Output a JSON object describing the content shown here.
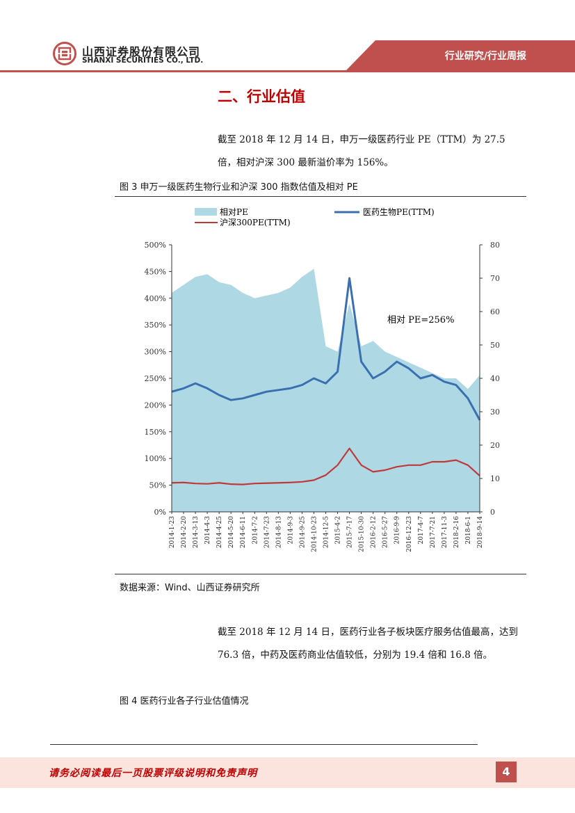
{
  "header": {
    "company_cn": "山西证券股份有限公司",
    "company_en": "SHANXI SECURITIES CO., LTD.",
    "report_tag": "行业研究/行业周报"
  },
  "section": {
    "title": "二、行业估值"
  },
  "para1": "截至 2018 年 12 月 14 日，申万一级医药行业 PE（TTM）为 27.5 倍，相对沪深 300 最新溢价率为 156%。",
  "fig3": {
    "title": "图 3  申万一级医药生物行业和沪深 300 指数估值及相对 PE"
  },
  "source": "数据来源：Wind、山西证券研究所",
  "para2": "截至 2018 年 12 月 14 日，医药行业各子板块医疗服务估值最高，达到 76.3 倍，中药及医药商业估值较低，分别为 19.4 倍和 16.8 倍。",
  "fig4": {
    "title": "图 4  医药行业各子行业估值情况"
  },
  "footer": {
    "disclaimer": "请务必阅读最后一页股票评级说明和免责声明",
    "page": "4"
  },
  "colors": {
    "brand_red": "#c0504d",
    "area": "#aed8e4",
    "pharma_line": "#3a6fb0",
    "hs300_line": "#c0393a"
  },
  "chart_data": {
    "type": "line",
    "legend": [
      "相对PE",
      "医药生物PE(TTM)",
      "沪深300PE(TTM)"
    ],
    "annotation": "相对 PE=256%",
    "y_left": {
      "ticks": [
        "0%",
        "50%",
        "100%",
        "150%",
        "200%",
        "250%",
        "300%",
        "350%",
        "400%",
        "450%",
        "500%"
      ],
      "range": [
        0,
        500
      ]
    },
    "y_right": {
      "ticks": [
        "0",
        "10",
        "20",
        "30",
        "40",
        "50",
        "60",
        "70",
        "80"
      ],
      "range": [
        0,
        80
      ]
    },
    "x_labels": [
      "2014-1-23",
      "2014-2-20",
      "2014-3-13",
      "2014-4-3",
      "2014-4-25",
      "2014-5-20",
      "2014-6-11",
      "2014-7-2",
      "2014-7-23",
      "2014-8-13",
      "2014-9-3",
      "2014-9-25",
      "2014-10-23",
      "2014-12-5",
      "2015-4-2",
      "2015-7-17",
      "2015-10-30",
      "2016-2-12",
      "2016-5-27",
      "2016-9-9",
      "2016-12-23",
      "2017-4-7",
      "2017-7-21",
      "2017-11-3",
      "2018-2-16",
      "2018-6-1",
      "2018-9-14"
    ],
    "series": [
      {
        "name": "相对PE",
        "axis": "left",
        "values": [
          410,
          425,
          440,
          445,
          430,
          425,
          410,
          400,
          405,
          410,
          420,
          440,
          455,
          310,
          300,
          390,
          310,
          320,
          300,
          290,
          280,
          270,
          260,
          250,
          250,
          230,
          256
        ]
      },
      {
        "name": "医药生物PE(TTM)",
        "axis": "right",
        "values": [
          36,
          37,
          38.5,
          37,
          35,
          33.5,
          34,
          35,
          36,
          36.5,
          37,
          38,
          40,
          38.5,
          42,
          70,
          45,
          40,
          42,
          45,
          43,
          40,
          41,
          39,
          38,
          34,
          27.5
        ]
      },
      {
        "name": "沪深300PE(TTM)",
        "axis": "right",
        "values": [
          8.7,
          8.8,
          8.5,
          8.4,
          8.7,
          8.3,
          8.2,
          8.5,
          8.6,
          8.7,
          8.8,
          9,
          9.5,
          11,
          14,
          19,
          14,
          12,
          12.5,
          13.5,
          14,
          14,
          15,
          15,
          15.5,
          14,
          10.8
        ]
      }
    ]
  }
}
